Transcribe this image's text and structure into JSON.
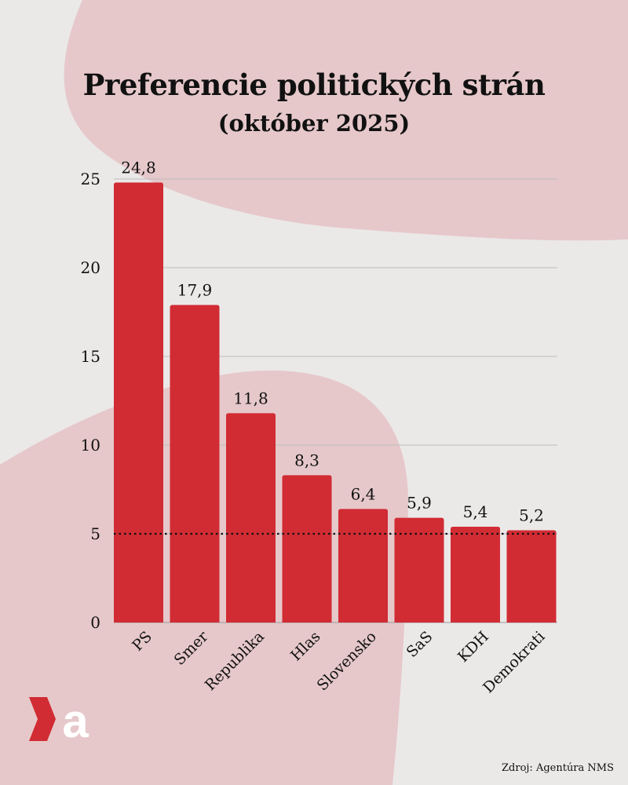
{
  "title": "Preferencie politických strán",
  "subtitle": "(október 2025)",
  "source": "Zdroj: Agentúra NMS",
  "logo_text": "a",
  "colors": {
    "background": "#ebe8e8",
    "blob": "#e6c8ca",
    "bar": "#d12b33",
    "gridline": "#bcbcbc",
    "threshold": "#111111"
  },
  "chart_data": {
    "type": "bar",
    "title": "Preferencie politických strán",
    "subtitle": "(október 2025)",
    "categories": [
      "PS",
      "Smer",
      "Republika",
      "Hlas",
      "Slovensko",
      "SaS",
      "KDH",
      "Demokrati"
    ],
    "values": [
      24.8,
      17.9,
      11.8,
      8.3,
      6.4,
      5.9,
      5.4,
      5.2
    ],
    "value_labels": [
      "24,8",
      "17,9",
      "11,8",
      "8,3",
      "6,4",
      "5,9",
      "5,4",
      "5,2"
    ],
    "yticks": [
      0,
      5,
      10,
      15,
      20,
      25
    ],
    "ylim": [
      0,
      25
    ],
    "threshold": 5,
    "threshold_style": "dotted",
    "grid": true,
    "legend": "none",
    "xlabel": "",
    "ylabel": ""
  }
}
